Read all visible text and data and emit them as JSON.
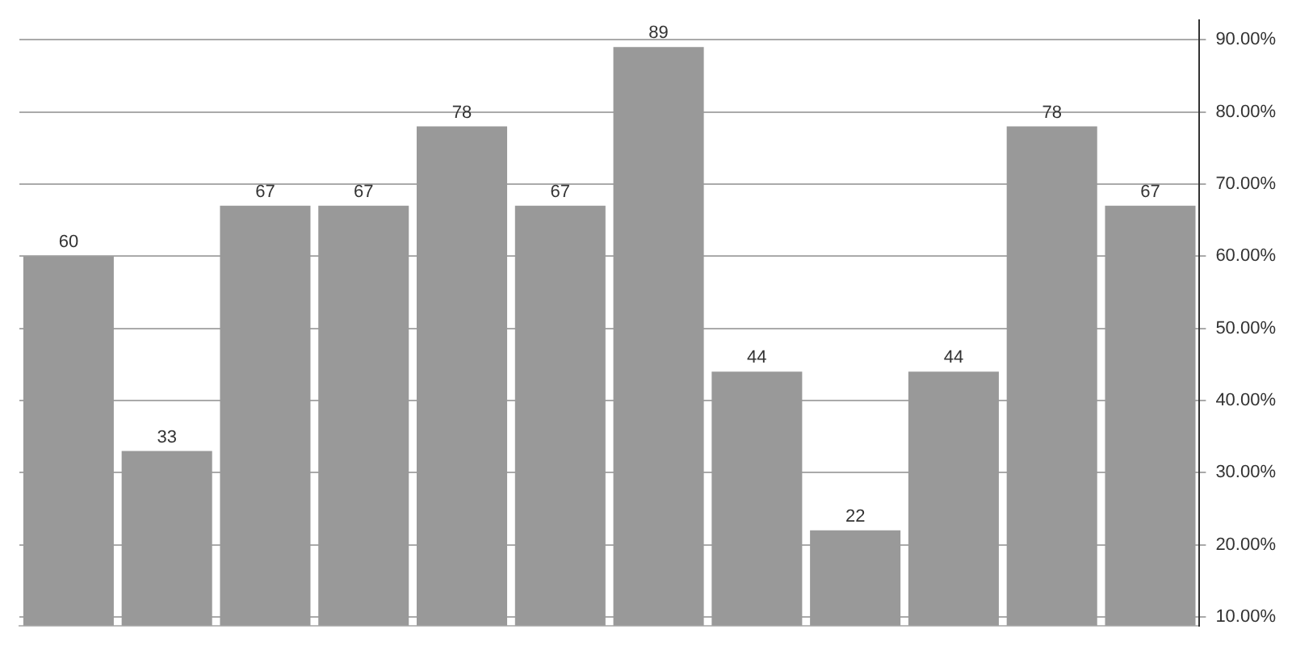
{
  "chart_data": {
    "type": "bar",
    "categories": [
      null,
      null,
      null,
      null,
      null,
      null,
      null,
      null,
      null,
      null,
      null,
      null
    ],
    "values": [
      60,
      33,
      67,
      67,
      78,
      67,
      89,
      44,
      22,
      44,
      78,
      67
    ],
    "color": "#999999",
    "data_labels": true,
    "grid": "y",
    "legend": false,
    "ylim": [
      8.8,
      92.7
    ],
    "yticks": [
      {
        "value": 10,
        "label": "10.00%"
      },
      {
        "value": 20,
        "label": "20.00%"
      },
      {
        "value": 30,
        "label": "30.00%"
      },
      {
        "value": 40,
        "label": "40.00%"
      },
      {
        "value": 50,
        "label": "50.00%"
      },
      {
        "value": 60,
        "label": "60.00%"
      },
      {
        "value": 70,
        "label": "70.00%"
      },
      {
        "value": 80,
        "label": "80.00%"
      },
      {
        "value": 90,
        "label": "90.00%"
      }
    ]
  }
}
